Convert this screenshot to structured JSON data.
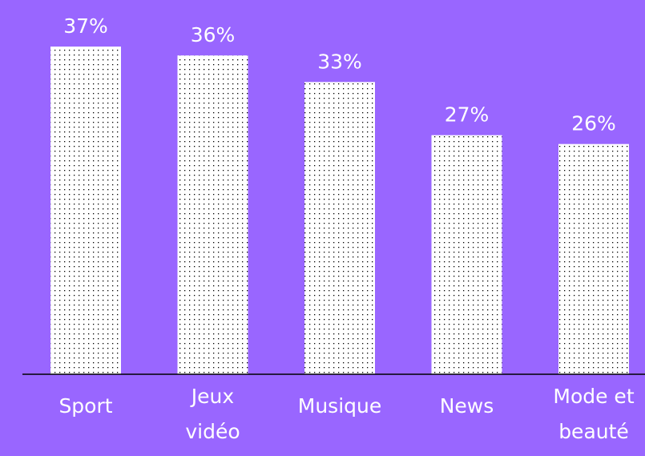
{
  "chart_data": {
    "type": "bar",
    "categories": [
      "Sport",
      "Jeux vidéo",
      "Musique",
      "News",
      "Mode et beauté"
    ],
    "values": [
      37,
      36,
      33,
      27,
      26
    ],
    "value_labels": [
      "37%",
      "36%",
      "33%",
      "27%",
      "26%"
    ],
    "color": "#ffffff"
  }
}
